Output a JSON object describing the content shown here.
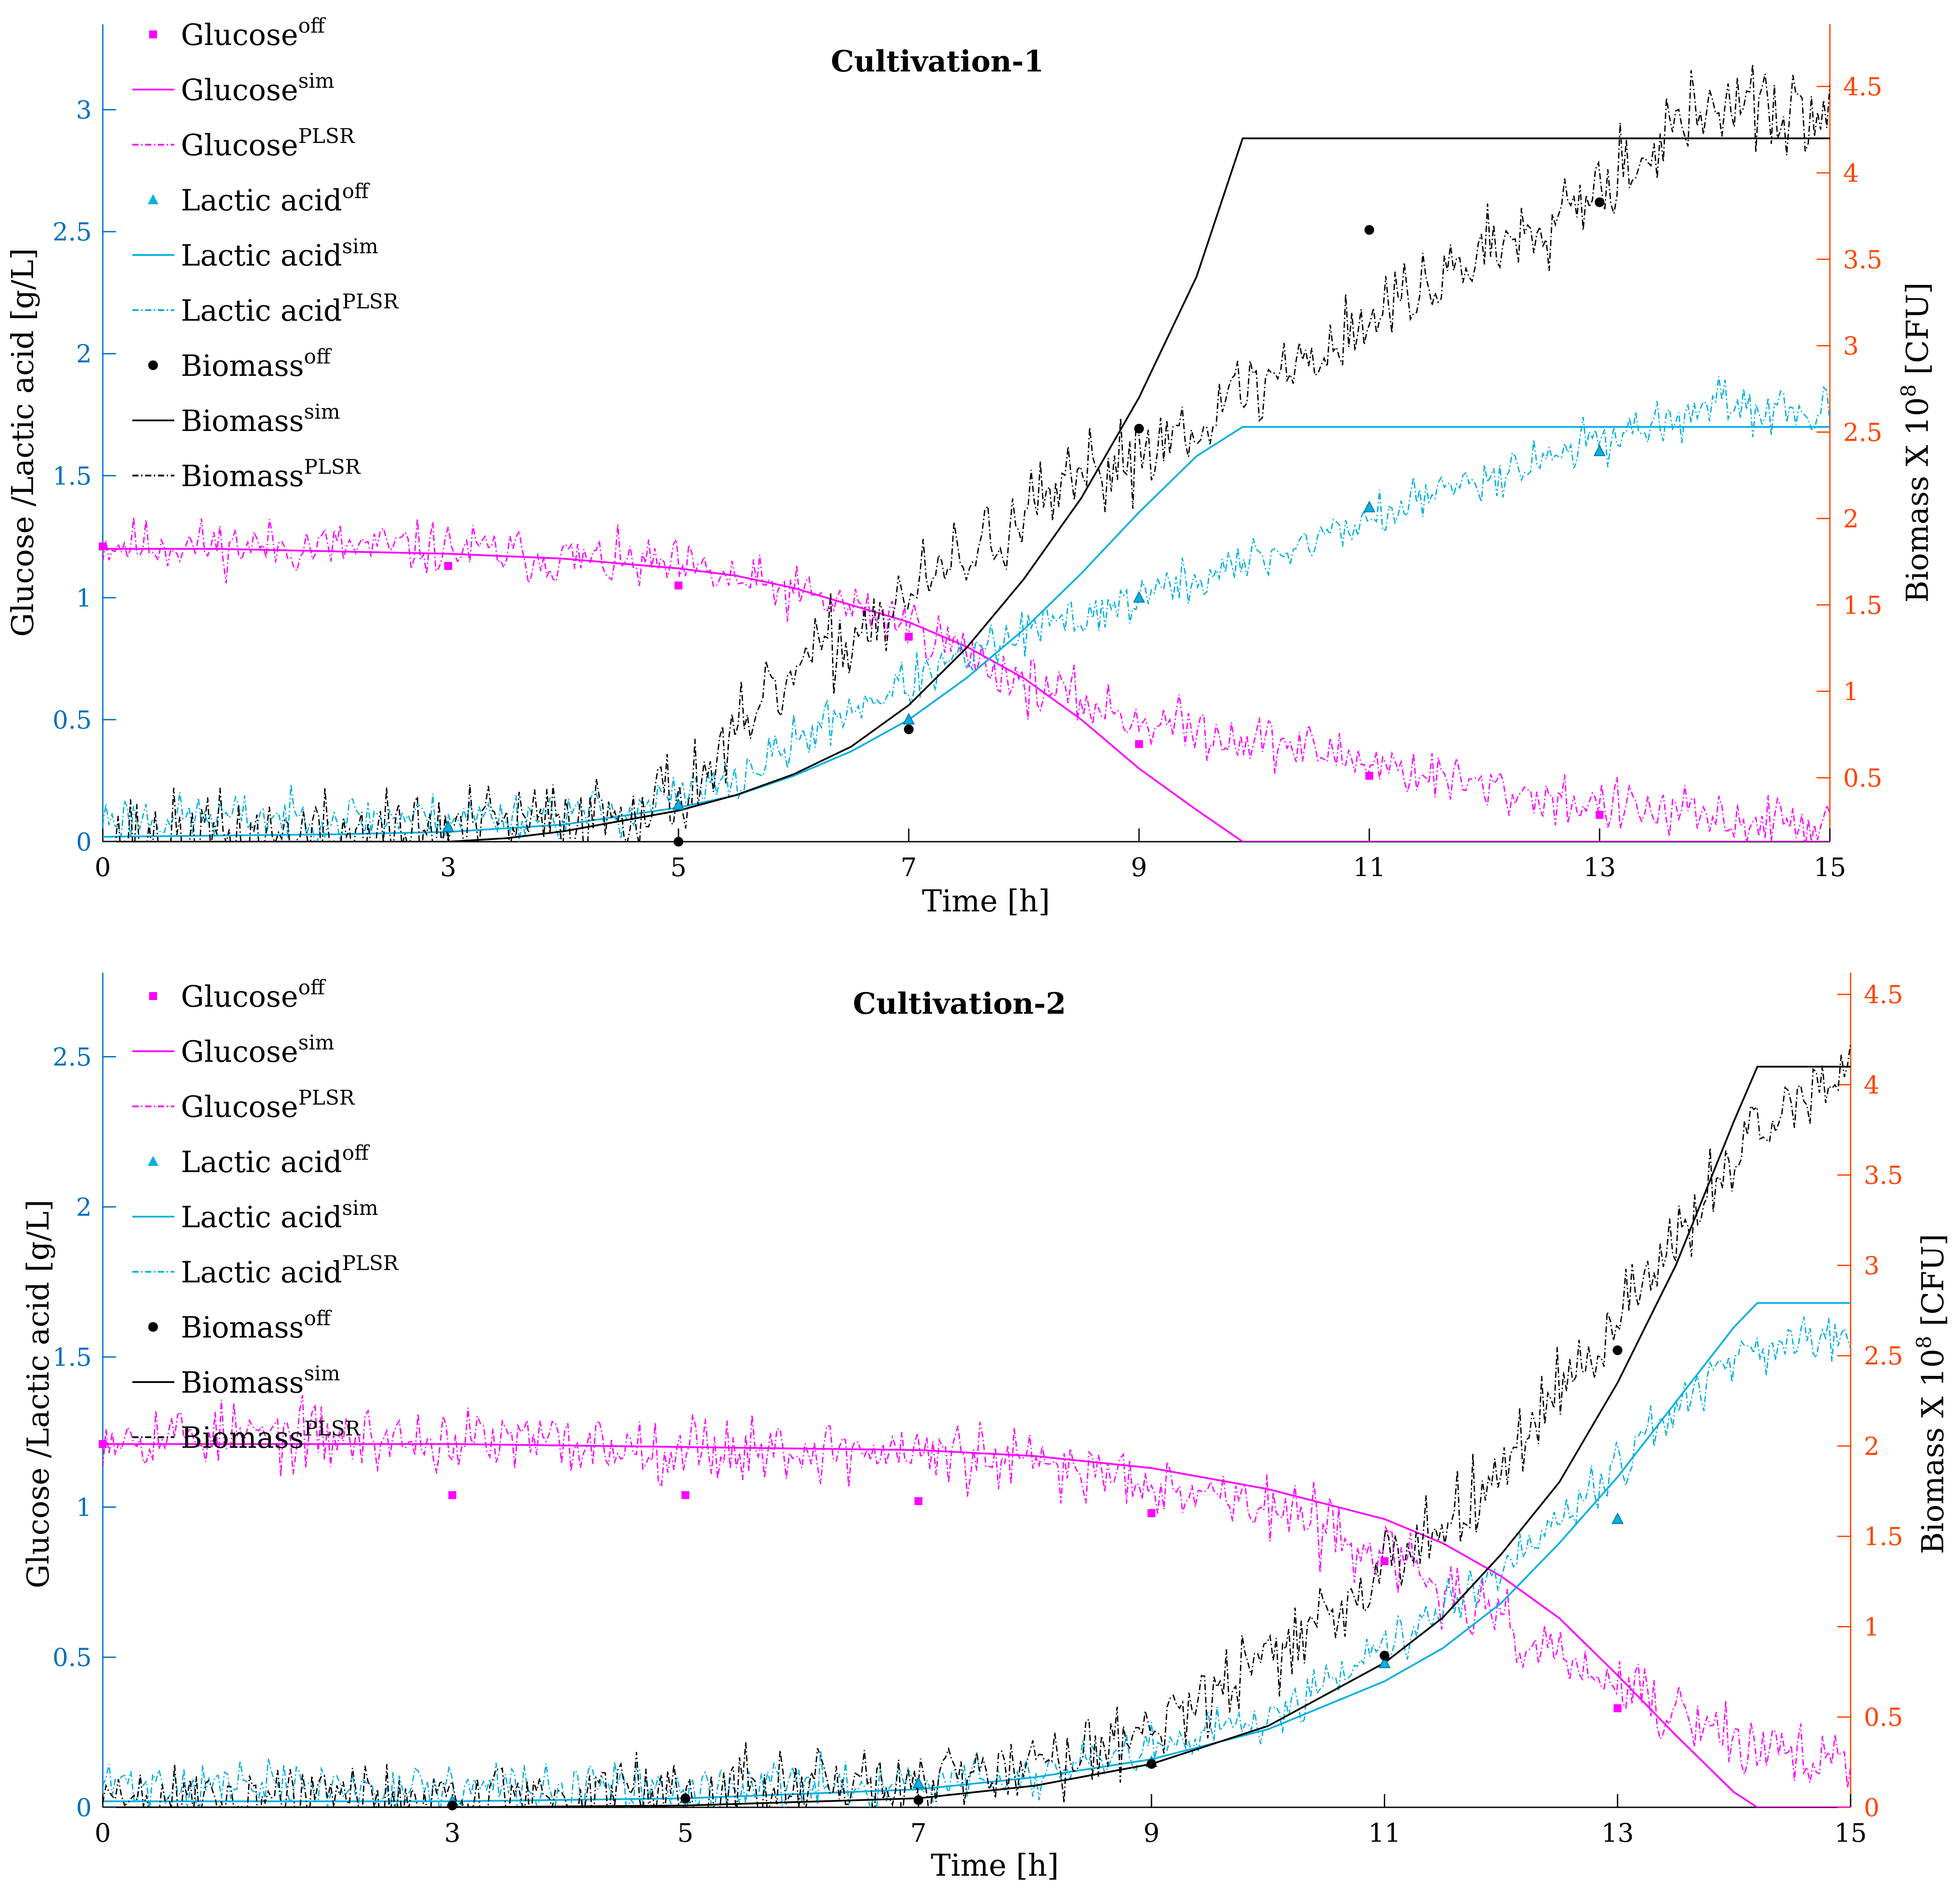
{
  "colors": {
    "glucose": "#ff00ff",
    "lactic": "#00b0e0",
    "biomass": "#000000",
    "left_axis": "#0070c0",
    "right_axis": "#ff4500"
  },
  "chart_data": [
    {
      "type": "line",
      "title": "Cultivation-1",
      "xlabel": "Time [h]",
      "ylabel_left": "Glucose /Lactic acid [g/L]",
      "ylabel_right": "Biomass X 10",
      "ylabel_right_sup": "8",
      "ylabel_right_unit": " [CFU]",
      "xlim": [
        0,
        15
      ],
      "xticks": [
        0,
        3,
        5,
        7,
        9,
        11,
        13,
        15
      ],
      "ylim_left": [
        0,
        3.35
      ],
      "yticks_left": [
        0,
        0.5,
        1,
        1.5,
        2,
        2.5,
        3
      ],
      "ylim_right": [
        0.13,
        4.86
      ],
      "yticks_right": [
        0.5,
        1,
        1.5,
        2,
        2.5,
        3,
        3.5,
        4,
        4.5
      ],
      "legend": [
        {
          "base": "Glucose",
          "sup": "off",
          "style": "marker-square",
          "color": "glucose"
        },
        {
          "base": "Glucose",
          "sup": "sim",
          "style": "solid",
          "color": "glucose"
        },
        {
          "base": "Glucose",
          "sup": "PLSR",
          "style": "dashdot",
          "color": "glucose"
        },
        {
          "base": "Lactic acid",
          "sup": "off",
          "style": "marker-triangle",
          "color": "lactic"
        },
        {
          "base": "Lactic acid",
          "sup": "sim",
          "style": "solid",
          "color": "lactic"
        },
        {
          "base": "Lactic acid",
          "sup": "PLSR",
          "style": "dashdot",
          "color": "lactic"
        },
        {
          "base": "Biomass",
          "sup": "off",
          "style": "marker-circle",
          "color": "biomass"
        },
        {
          "base": "Biomass",
          "sup": "sim",
          "style": "solid",
          "color": "biomass"
        },
        {
          "base": "Biomass",
          "sup": "PLSR",
          "style": "dashdot",
          "color": "biomass"
        }
      ],
      "series": [
        {
          "name": "Glucose off",
          "kind": "points",
          "axis": "left",
          "color": "glucose",
          "marker": "square",
          "x": [
            0,
            3,
            5,
            7,
            9,
            11,
            13
          ],
          "y": [
            1.21,
            1.13,
            1.05,
            0.84,
            0.4,
            0.27,
            0.11
          ]
        },
        {
          "name": "Glucose sim",
          "kind": "line",
          "axis": "left",
          "color": "glucose",
          "x": [
            0,
            1,
            2,
            3,
            4,
            5,
            5.5,
            6,
            6.5,
            7,
            7.5,
            8,
            8.5,
            9,
            9.5,
            9.9,
            15
          ],
          "y": [
            1.2,
            1.2,
            1.19,
            1.18,
            1.16,
            1.12,
            1.09,
            1.04,
            0.97,
            0.9,
            0.8,
            0.67,
            0.5,
            0.3,
            0.13,
            0.0,
            0.0
          ]
        },
        {
          "name": "Glucose PLSR",
          "kind": "noisy",
          "axis": "left",
          "color": "glucose",
          "noise": 0.08,
          "seed": 11,
          "x": [
            0,
            3,
            5,
            6,
            7,
            8,
            9,
            10,
            11,
            12,
            13,
            14,
            15
          ],
          "y": [
            1.22,
            1.2,
            1.12,
            1.02,
            0.9,
            0.65,
            0.5,
            0.42,
            0.33,
            0.22,
            0.15,
            0.09,
            0.07
          ]
        },
        {
          "name": "Lactic acid off",
          "kind": "points",
          "axis": "left",
          "color": "lactic",
          "marker": "triangle",
          "x": [
            3,
            5,
            7,
            9,
            11,
            13
          ],
          "y": [
            0.06,
            0.15,
            0.5,
            1.0,
            1.37,
            1.6
          ]
        },
        {
          "name": "Lactic acid sim",
          "kind": "line",
          "axis": "left",
          "color": "lactic",
          "x": [
            0,
            2,
            3,
            4,
            5,
            5.5,
            6,
            6.5,
            7,
            7.5,
            8,
            8.5,
            9,
            9.5,
            9.9,
            15
          ],
          "y": [
            0.02,
            0.03,
            0.04,
            0.07,
            0.14,
            0.19,
            0.27,
            0.37,
            0.5,
            0.67,
            0.87,
            1.1,
            1.35,
            1.58,
            1.7,
            1.7
          ]
        },
        {
          "name": "Lactic acid PLSR",
          "kind": "noisy",
          "axis": "left",
          "color": "lactic",
          "noise": 0.07,
          "seed": 23,
          "x": [
            0,
            3,
            4.5,
            5.5,
            6.5,
            7,
            8,
            9,
            10,
            11,
            12,
            13,
            14,
            15
          ],
          "y": [
            0.1,
            0.1,
            0.12,
            0.25,
            0.55,
            0.65,
            0.85,
            1.0,
            1.15,
            1.32,
            1.5,
            1.65,
            1.78,
            1.75
          ]
        },
        {
          "name": "Biomass off",
          "kind": "points",
          "axis": "right",
          "color": "biomass",
          "marker": "circle",
          "x": [
            5,
            7,
            9,
            11,
            13
          ],
          "y": [
            0.13,
            0.78,
            2.52,
            3.67,
            3.83
          ]
        },
        {
          "name": "Biomass sim",
          "kind": "line",
          "axis": "right",
          "color": "biomass",
          "x": [
            0,
            3,
            3.5,
            4,
            4.5,
            5,
            5.5,
            6,
            6.5,
            7,
            7.5,
            8,
            8.5,
            9,
            9.5,
            9.9,
            15
          ],
          "y": [
            0.13,
            0.13,
            0.15,
            0.19,
            0.25,
            0.31,
            0.4,
            0.52,
            0.68,
            0.92,
            1.25,
            1.65,
            2.12,
            2.7,
            3.4,
            4.2,
            4.2
          ]
        },
        {
          "name": "Biomass PLSR",
          "kind": "noisy",
          "axis": "right",
          "color": "biomass",
          "noise": 0.18,
          "seed": 37,
          "x": [
            0,
            2,
            3,
            4,
            5,
            5.5,
            6,
            7,
            8,
            9,
            10,
            11,
            12,
            13,
            14,
            15
          ],
          "y": [
            0.15,
            0.17,
            0.2,
            0.25,
            0.4,
            0.7,
            1.1,
            1.55,
            2.0,
            2.4,
            2.75,
            3.15,
            3.55,
            3.95,
            4.4,
            4.3
          ]
        }
      ]
    },
    {
      "type": "line",
      "title": "Cultivation-2",
      "xlabel": "Time [h]",
      "ylabel_left": "Glucose /Lactic acid [g/L]",
      "ylabel_right": "Biomass X 10",
      "ylabel_right_sup": "8",
      "ylabel_right_unit": " [CFU]",
      "xlim": [
        0,
        15
      ],
      "xticks": [
        0,
        3,
        5,
        7,
        9,
        11,
        13,
        15
      ],
      "ylim_left": [
        0,
        2.78
      ],
      "yticks_left": [
        0,
        0.5,
        1,
        1.5,
        2,
        2.5
      ],
      "ylim_right": [
        0,
        4.62
      ],
      "yticks_right": [
        0,
        0.5,
        1,
        1.5,
        2,
        2.5,
        3,
        3.5,
        4,
        4.5
      ],
      "legend": [
        {
          "base": "Glucose",
          "sup": "off",
          "style": "marker-square",
          "color": "glucose"
        },
        {
          "base": "Glucose",
          "sup": "sim",
          "style": "solid",
          "color": "glucose"
        },
        {
          "base": "Glucose",
          "sup": "PLSR",
          "style": "dashdot",
          "color": "glucose"
        },
        {
          "base": "Lactic acid",
          "sup": "off",
          "style": "marker-triangle",
          "color": "lactic"
        },
        {
          "base": "Lactic acid",
          "sup": "sim",
          "style": "solid",
          "color": "lactic"
        },
        {
          "base": "Lactic acid",
          "sup": "PLSR",
          "style": "dashdot",
          "color": "lactic"
        },
        {
          "base": "Biomass",
          "sup": "off",
          "style": "marker-circle",
          "color": "biomass"
        },
        {
          "base": "Biomass",
          "sup": "sim",
          "style": "solid",
          "color": "biomass"
        },
        {
          "base": "Biomass",
          "sup": "PLSR",
          "style": "dashdot",
          "color": "biomass"
        }
      ],
      "series": [
        {
          "name": "Glucose off",
          "kind": "points",
          "axis": "left",
          "color": "glucose",
          "marker": "square",
          "x": [
            0,
            3,
            5,
            7,
            9,
            11,
            13
          ],
          "y": [
            1.21,
            1.04,
            1.04,
            1.02,
            0.98,
            0.82,
            0.33
          ]
        },
        {
          "name": "Glucose sim",
          "kind": "line",
          "axis": "left",
          "color": "glucose",
          "x": [
            0,
            3,
            5,
            7,
            8,
            9,
            10,
            11,
            11.5,
            12,
            12.5,
            13,
            13.5,
            14,
            14.2,
            15
          ],
          "y": [
            1.21,
            1.21,
            1.2,
            1.19,
            1.17,
            1.13,
            1.06,
            0.96,
            0.88,
            0.77,
            0.63,
            0.44,
            0.24,
            0.05,
            0.0,
            0.0
          ]
        },
        {
          "name": "Glucose PLSR",
          "kind": "noisy",
          "axis": "left",
          "color": "glucose",
          "noise": 0.08,
          "seed": 53,
          "x": [
            0,
            3,
            5,
            7,
            9,
            10,
            11,
            12,
            13,
            14,
            15
          ],
          "y": [
            1.25,
            1.22,
            1.2,
            1.18,
            1.1,
            1.0,
            0.85,
            0.6,
            0.4,
            0.22,
            0.15
          ]
        },
        {
          "name": "Lactic acid off",
          "kind": "points",
          "axis": "left",
          "color": "lactic",
          "marker": "triangle",
          "x": [
            3,
            5,
            7,
            9,
            11,
            13
          ],
          "y": [
            0.02,
            0.03,
            0.08,
            0.15,
            0.48,
            0.96
          ]
        },
        {
          "name": "Lactic acid sim",
          "kind": "line",
          "axis": "left",
          "color": "lactic",
          "x": [
            0,
            3,
            5,
            7,
            8,
            9,
            10,
            11,
            11.5,
            12,
            12.5,
            13,
            13.5,
            14,
            14.2,
            15
          ],
          "y": [
            0.02,
            0.02,
            0.03,
            0.06,
            0.1,
            0.16,
            0.26,
            0.42,
            0.53,
            0.68,
            0.88,
            1.1,
            1.35,
            1.6,
            1.68,
            1.68
          ]
        },
        {
          "name": "Lactic acid PLSR",
          "kind": "noisy",
          "axis": "left",
          "color": "lactic",
          "noise": 0.06,
          "seed": 71,
          "x": [
            0,
            3,
            5,
            7,
            8,
            9,
            10,
            11,
            12,
            13,
            14,
            15
          ],
          "y": [
            0.08,
            0.06,
            0.06,
            0.08,
            0.1,
            0.18,
            0.3,
            0.55,
            0.8,
            1.15,
            1.5,
            1.55
          ]
        },
        {
          "name": "Biomass off",
          "kind": "points",
          "axis": "right",
          "color": "biomass",
          "marker": "circle",
          "x": [
            3,
            5,
            7,
            9,
            11,
            13
          ],
          "y": [
            0.01,
            0.05,
            0.04,
            0.24,
            0.84,
            2.53
          ]
        },
        {
          "name": "Biomass sim",
          "kind": "line",
          "axis": "right",
          "color": "biomass",
          "x": [
            0,
            3,
            5,
            7,
            8,
            9,
            10,
            11,
            11.5,
            12,
            12.5,
            13,
            13.5,
            14,
            14.2,
            15
          ],
          "y": [
            0.0,
            0.0,
            0.01,
            0.05,
            0.12,
            0.24,
            0.45,
            0.8,
            1.05,
            1.4,
            1.8,
            2.35,
            3.0,
            3.8,
            4.1,
            4.1
          ]
        },
        {
          "name": "Biomass PLSR",
          "kind": "noisy",
          "axis": "right",
          "color": "biomass",
          "noise": 0.15,
          "seed": 89,
          "x": [
            0,
            3,
            5,
            7,
            8,
            9,
            10,
            11,
            12,
            13,
            14,
            15
          ],
          "y": [
            0.05,
            0.06,
            0.08,
            0.12,
            0.25,
            0.45,
            0.8,
            1.3,
            1.9,
            2.7,
            3.6,
            4.1
          ]
        }
      ]
    }
  ]
}
